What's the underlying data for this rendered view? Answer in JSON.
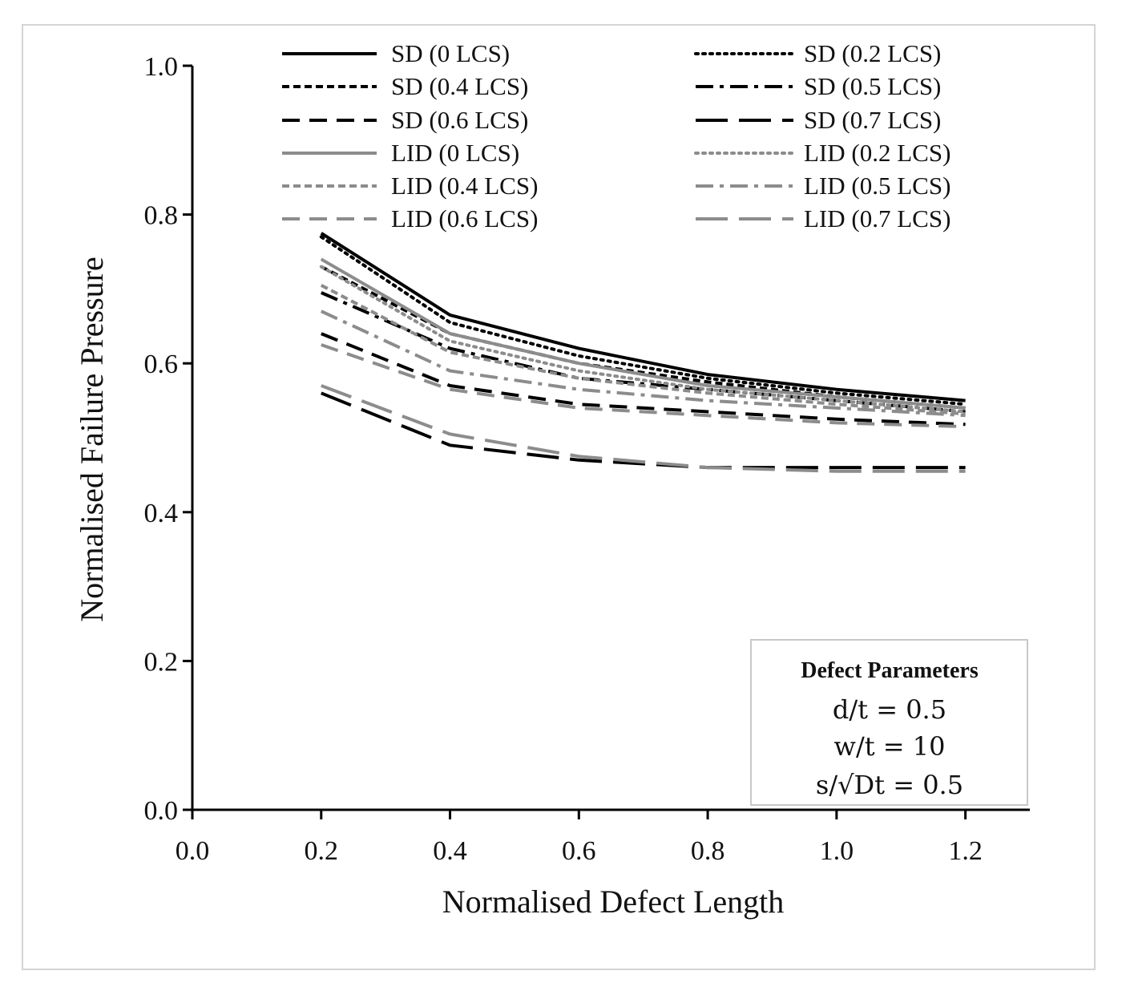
{
  "chart_data": {
    "type": "line",
    "title": "",
    "xlabel": "Normalised Defect Length",
    "ylabel": "Normalised Failure Pressure",
    "xlim": [
      0.0,
      1.3
    ],
    "ylim": [
      0.0,
      1.0
    ],
    "xticks": [
      0.0,
      0.2,
      0.4,
      0.6,
      0.8,
      1.0,
      1.2
    ],
    "yticks": [
      0.0,
      0.2,
      0.4,
      0.6,
      0.8,
      1.0
    ],
    "xtick_labels": [
      "0.0",
      "0.2",
      "0.4",
      "0.6",
      "0.8",
      "1.0",
      "1.2"
    ],
    "ytick_labels": [
      "0.0",
      "0.2",
      "0.4",
      "0.6",
      "0.8",
      "1.0"
    ],
    "grid": false,
    "legend_position": "top",
    "x": [
      0.2,
      0.4,
      0.6,
      0.8,
      1.0,
      1.2
    ],
    "series": [
      {
        "name": "SD (0 LCS)",
        "color": "#000000",
        "dash": "solid",
        "values": [
          0.775,
          0.665,
          0.62,
          0.585,
          0.565,
          0.55
        ]
      },
      {
        "name": "SD (0.2 LCS)",
        "color": "#000000",
        "dash": "dotted",
        "values": [
          0.77,
          0.655,
          0.61,
          0.58,
          0.56,
          0.545
        ]
      },
      {
        "name": "SD (0.4 LCS)",
        "color": "#000000",
        "dash": "short",
        "values": [
          0.73,
          0.64,
          0.6,
          0.575,
          0.555,
          0.54
        ]
      },
      {
        "name": "SD (0.5 LCS)",
        "color": "#000000",
        "dash": "dashdot",
        "values": [
          0.695,
          0.62,
          0.58,
          0.565,
          0.55,
          0.535
        ]
      },
      {
        "name": "SD (0.6 LCS)",
        "color": "#000000",
        "dash": "medium",
        "values": [
          0.64,
          0.57,
          0.545,
          0.535,
          0.525,
          0.518
        ]
      },
      {
        "name": "SD (0.7 LCS)",
        "color": "#000000",
        "dash": "long",
        "values": [
          0.56,
          0.49,
          0.47,
          0.46,
          0.46,
          0.46
        ]
      },
      {
        "name": "LID (0 LCS)",
        "color": "#8c8c8c",
        "dash": "solid",
        "values": [
          0.74,
          0.64,
          0.6,
          0.57,
          0.555,
          0.54
        ]
      },
      {
        "name": "LID (0.2 LCS)",
        "color": "#8c8c8c",
        "dash": "dotted",
        "values": [
          0.73,
          0.63,
          0.59,
          0.565,
          0.55,
          0.535
        ]
      },
      {
        "name": "LID (0.4 LCS)",
        "color": "#8c8c8c",
        "dash": "short",
        "values": [
          0.705,
          0.615,
          0.58,
          0.56,
          0.545,
          0.532
        ]
      },
      {
        "name": "LID (0.5 LCS)",
        "color": "#8c8c8c",
        "dash": "dashdot",
        "values": [
          0.67,
          0.59,
          0.565,
          0.55,
          0.54,
          0.53
        ]
      },
      {
        "name": "LID (0.6 LCS)",
        "color": "#8c8c8c",
        "dash": "medium",
        "values": [
          0.625,
          0.565,
          0.54,
          0.53,
          0.52,
          0.515
        ]
      },
      {
        "name": "LID (0.7 LCS)",
        "color": "#8c8c8c",
        "dash": "long",
        "values": [
          0.57,
          0.505,
          0.475,
          0.46,
          0.455,
          0.455
        ]
      }
    ],
    "annotation": {
      "title": "Defect Parameters",
      "lines": [
        "d/t = 0.5",
        "w/t = 10",
        "s/√Dt = 0.5"
      ]
    }
  }
}
